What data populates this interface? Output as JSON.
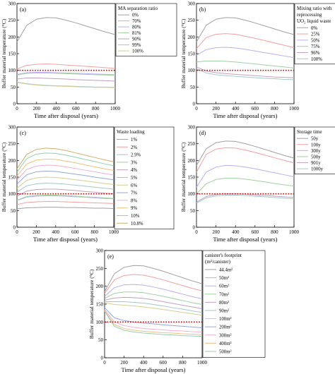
{
  "figure": {
    "xlabel": "Time after disposal (years)",
    "ylabel": "Buffer material temperature (°C)"
  },
  "chart_data": [
    {
      "panel": "(a)",
      "type": "line",
      "xlabel": "Time after disposal (years)",
      "ylabel": "Buffer material temperature (°C)",
      "xlim": [
        0,
        1000
      ],
      "ylim": [
        0,
        300
      ],
      "xticks": [
        0,
        200,
        400,
        600,
        800,
        1000
      ],
      "yticks": [
        0,
        50,
        100,
        150,
        200,
        250,
        300
      ],
      "legend_title": [
        "MA separation ratio"
      ],
      "legend_position": "top-right",
      "x": [
        0,
        100,
        200,
        300,
        400,
        500,
        600,
        700,
        800,
        900,
        1000
      ],
      "series": [
        {
          "name": "0%",
          "color": "#a0a0a0",
          "values": [
            185,
            235,
            253,
            258,
            257,
            250,
            242,
            233,
            224,
            215,
            207
          ]
        },
        {
          "name": "70%",
          "color": "#f4a0a0",
          "values": [
            104,
            115,
            118,
            119,
            118,
            116,
            114,
            112,
            110,
            108,
            106
          ]
        },
        {
          "name": "80%",
          "color": "#b8b0f0",
          "values": [
            88,
            93,
            94,
            94,
            93,
            92,
            91,
            90,
            89,
            88,
            87
          ]
        },
        {
          "name": "81%",
          "color": "#a0d0a0",
          "values": [
            86,
            91,
            92,
            92,
            91,
            90,
            89,
            88,
            87,
            86,
            85
          ]
        },
        {
          "name": "90%",
          "color": "#c0a0c0",
          "values": [
            74,
            77,
            77,
            76,
            75,
            74,
            72,
            71,
            70,
            69,
            68
          ]
        },
        {
          "name": "99%",
          "color": "#a0c8c8",
          "values": [
            65,
            60,
            57,
            55,
            54,
            53,
            52,
            51,
            50,
            50,
            49
          ]
        },
        {
          "name": "100%",
          "color": "#d0d090",
          "values": [
            64,
            59,
            56,
            54,
            53,
            52,
            51,
            50,
            49,
            49,
            48
          ]
        }
      ],
      "reference_line": {
        "y": 100,
        "color": "#d00000"
      }
    },
    {
      "panel": "(b)",
      "type": "line",
      "xlabel": "Time after disposal (years)",
      "ylabel": "Buffer material temperature (°C)",
      "xlim": [
        0,
        1000
      ],
      "ylim": [
        0,
        300
      ],
      "xticks": [
        0,
        200,
        400,
        600,
        800,
        1000
      ],
      "yticks": [
        0,
        50,
        100,
        150,
        200,
        250,
        300
      ],
      "legend_title": [
        "Mixing ratio with",
        "reprocessing",
        "UO₂ liquid waste"
      ],
      "legend_position": "top-right",
      "x": [
        0,
        100,
        200,
        300,
        400,
        500,
        600,
        700,
        800,
        900,
        1000
      ],
      "series": [
        {
          "name": "0%",
          "color": "#a0a0a0",
          "values": [
            185,
            235,
            253,
            258,
            257,
            250,
            242,
            233,
            224,
            215,
            207
          ]
        },
        {
          "name": "25%",
          "color": "#f4a0a0",
          "values": [
            165,
            198,
            208,
            210,
            208,
            202,
            196,
            189,
            182,
            175,
            168
          ]
        },
        {
          "name": "50%",
          "color": "#b8b0f0",
          "values": [
            145,
            162,
            168,
            169,
            167,
            163,
            158,
            153,
            148,
            143,
            138
          ]
        },
        {
          "name": "75%",
          "color": "#a0d0a0",
          "values": [
            125,
            128,
            128,
            127,
            125,
            122,
            119,
            116,
            113,
            110,
            107
          ]
        },
        {
          "name": "96%",
          "color": "#c0a0c0",
          "values": [
            110,
            98,
            93,
            90,
            88,
            86,
            84,
            82,
            80,
            79,
            78
          ]
        },
        {
          "name": "100%",
          "color": "#a0c8c8",
          "values": [
            105,
            92,
            87,
            84,
            82,
            80,
            78,
            76,
            75,
            73,
            72
          ]
        }
      ],
      "reference_line": {
        "y": 100,
        "color": "#d00000"
      }
    },
    {
      "panel": "(c)",
      "type": "line",
      "xlabel": "Time after disposal (years)",
      "ylabel": "Buffer material temperature (°C)",
      "xlim": [
        0,
        1000
      ],
      "ylim": [
        0,
        300
      ],
      "xticks": [
        0,
        200,
        400,
        600,
        800,
        1000
      ],
      "yticks": [
        0,
        50,
        100,
        150,
        200,
        250,
        300
      ],
      "legend_title": [
        "Waste loading"
      ],
      "legend_position": "top-right",
      "x": [
        0,
        100,
        200,
        300,
        400,
        500,
        600,
        700,
        800,
        900,
        1000
      ],
      "series": [
        {
          "name": "1%",
          "color": "#a0a0a0",
          "values": [
            55,
            58,
            59,
            60,
            60,
            59,
            59,
            58,
            57,
            57,
            56
          ]
        },
        {
          "name": "2%",
          "color": "#f4a0a0",
          "values": [
            68,
            74,
            76,
            77,
            77,
            76,
            75,
            74,
            73,
            72,
            71
          ]
        },
        {
          "name": "2.9%",
          "color": "#b8b0f0",
          "values": [
            80,
            90,
            93,
            94,
            94,
            93,
            91,
            90,
            88,
            86,
            85
          ]
        },
        {
          "name": "3%",
          "color": "#a0d0a0",
          "values": [
            81,
            92,
            95,
            96,
            96,
            95,
            93,
            91,
            90,
            88,
            86
          ]
        },
        {
          "name": "4%",
          "color": "#c0a0c0",
          "values": [
            93,
            108,
            113,
            114,
            114,
            112,
            110,
            107,
            105,
            102,
            100
          ]
        },
        {
          "name": "5%",
          "color": "#a0c8c8",
          "values": [
            105,
            124,
            130,
            132,
            131,
            129,
            126,
            123,
            120,
            117,
            114
          ]
        },
        {
          "name": "6%",
          "color": "#d0d090",
          "values": [
            117,
            140,
            148,
            150,
            149,
            146,
            142,
            139,
            135,
            131,
            128
          ]
        },
        {
          "name": "7%",
          "color": "#90a8e0",
          "values": [
            129,
            157,
            166,
            168,
            167,
            163,
            159,
            155,
            150,
            146,
            142
          ]
        },
        {
          "name": "8%",
          "color": "#f0b0d0",
          "values": [
            141,
            173,
            183,
            186,
            185,
            181,
            176,
            171,
            166,
            161,
            156
          ]
        },
        {
          "name": "9%",
          "color": "#f0c080",
          "values": [
            153,
            189,
            201,
            204,
            203,
            198,
            193,
            187,
            181,
            175,
            170
          ]
        },
        {
          "name": "10%",
          "color": "#90d0b0",
          "values": [
            165,
            205,
            219,
            222,
            221,
            216,
            210,
            203,
            197,
            190,
            184
          ]
        },
        {
          "name": "10.8%",
          "color": "#d0b070",
          "values": [
            175,
            218,
            233,
            237,
            235,
            230,
            223,
            216,
            209,
            202,
            196
          ]
        }
      ],
      "reference_line": {
        "y": 100,
        "color": "#d00000"
      }
    },
    {
      "panel": "(d)",
      "type": "line",
      "xlabel": "Time after disposal (years)",
      "ylabel": "Buffer material temperature (°C)",
      "xlim": [
        0,
        1000
      ],
      "ylim": [
        0,
        300
      ],
      "xticks": [
        0,
        200,
        400,
        600,
        800,
        1000
      ],
      "yticks": [
        0,
        50,
        100,
        150,
        200,
        250,
        300
      ],
      "legend_title": [
        "Storage time"
      ],
      "legend_position": "top-right",
      "x": [
        0,
        100,
        200,
        300,
        400,
        500,
        600,
        700,
        800,
        900,
        1000
      ],
      "series": [
        {
          "name": "50y",
          "color": "#a0a0a0",
          "values": [
            185,
            235,
            253,
            258,
            257,
            250,
            242,
            233,
            224,
            215,
            207
          ]
        },
        {
          "name": "100y",
          "color": "#f4a0a0",
          "values": [
            165,
            218,
            234,
            238,
            237,
            231,
            224,
            216,
            208,
            200,
            193
          ]
        },
        {
          "name": "300y",
          "color": "#b8b0f0",
          "values": [
            120,
            165,
            180,
            185,
            184,
            180,
            175,
            169,
            163,
            157,
            151
          ]
        },
        {
          "name": "500y",
          "color": "#a0d0a0",
          "values": [
            100,
            130,
            143,
            147,
            147,
            144,
            140,
            136,
            131,
            127,
            123
          ]
        },
        {
          "name": "901y",
          "color": "#c0a0c0",
          "values": [
            75,
            92,
            98,
            100,
            100,
            99,
            97,
            95,
            93,
            91,
            89
          ]
        },
        {
          "name": "1000y",
          "color": "#a0c8c8",
          "values": [
            72,
            88,
            94,
            96,
            96,
            95,
            93,
            91,
            89,
            87,
            85
          ]
        }
      ],
      "reference_line": {
        "y": 100,
        "color": "#d00000"
      }
    },
    {
      "panel": "(e)",
      "type": "line",
      "xlabel": "Time after disposal (years)",
      "ylabel": "Buffer material temperature (°C)",
      "xlim": [
        0,
        1000
      ],
      "ylim": [
        0,
        300
      ],
      "xticks": [
        0,
        200,
        400,
        600,
        800,
        1000
      ],
      "yticks": [
        0,
        50,
        100,
        150,
        200,
        250,
        300
      ],
      "legend_title": [
        "canister's footprint",
        "(m²/canister)"
      ],
      "legend_position": "top-right",
      "x": [
        0,
        100,
        200,
        300,
        400,
        500,
        600,
        700,
        800,
        900,
        1000
      ],
      "series": [
        {
          "name": "44.4m²",
          "color": "#a0a0a0",
          "values": [
            185,
            235,
            253,
            258,
            257,
            250,
            242,
            233,
            224,
            215,
            207
          ]
        },
        {
          "name": "50m²",
          "color": "#f4a0a0",
          "values": [
            180,
            218,
            230,
            233,
            231,
            225,
            218,
            210,
            202,
            194,
            187
          ]
        },
        {
          "name": "60m²",
          "color": "#b8b0f0",
          "values": [
            172,
            196,
            204,
            205,
            203,
            198,
            192,
            185,
            178,
            171,
            165
          ]
        },
        {
          "name": "70m²",
          "color": "#a0d0a0",
          "values": [
            166,
            180,
            184,
            184,
            182,
            177,
            172,
            166,
            160,
            154,
            149
          ]
        },
        {
          "name": "80m²",
          "color": "#c0a0c0",
          "values": [
            161,
            167,
            169,
            168,
            166,
            162,
            157,
            152,
            147,
            142,
            137
          ]
        },
        {
          "name": "90m²",
          "color": "#a0c8c8",
          "values": [
            157,
            157,
            157,
            155,
            153,
            149,
            145,
            140,
            136,
            131,
            127
          ]
        },
        {
          "name": "100m²",
          "color": "#d0d090",
          "values": [
            154,
            149,
            147,
            145,
            142,
            139,
            135,
            131,
            127,
            123,
            119
          ]
        },
        {
          "name": "200m²",
          "color": "#90a8e0",
          "values": [
            140,
            112,
            104,
            100,
            97,
            95,
            92,
            90,
            88,
            86,
            84
          ]
        },
        {
          "name": "300m²",
          "color": "#f0b0d0",
          "values": [
            135,
            100,
            90,
            85,
            82,
            80,
            78,
            76,
            75,
            73,
            72
          ]
        },
        {
          "name": "400m²",
          "color": "#f0c080",
          "values": [
            132,
            93,
            82,
            77,
            74,
            72,
            70,
            69,
            67,
            66,
            65
          ]
        },
        {
          "name": "500m²",
          "color": "#90d0b0",
          "values": [
            130,
            88,
            77,
            72,
            69,
            67,
            65,
            64,
            62,
            61,
            60
          ]
        }
      ],
      "reference_line": {
        "y": 100,
        "color": "#d00000"
      }
    }
  ]
}
